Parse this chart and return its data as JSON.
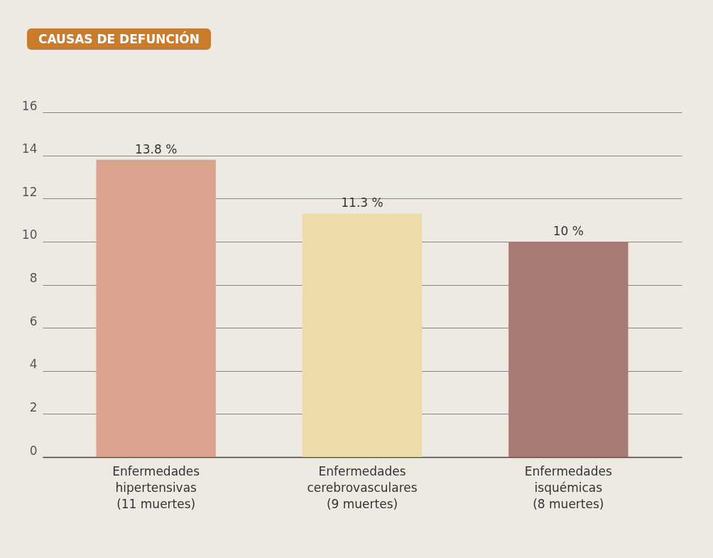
{
  "chart_data": {
    "type": "bar",
    "title": "CAUSAS DE DEFUNCIÓN",
    "categories": [
      "Enfermedades\nhipertensivas\n(11 muertes)",
      "Enfermedades\ncerebrovasculares\n(9 muertes)",
      "Enfermedades\nisquémicas\n(8 muertes)"
    ],
    "values": [
      13.8,
      11.3,
      10
    ],
    "colors": [
      "#d9a38e",
      "#ecdca9",
      "#a87a76"
    ],
    "value_labels": [
      "13.8 %",
      "11.3 %",
      "10 %"
    ],
    "ylim": [
      0,
      16
    ],
    "yticks": [
      0,
      2,
      4,
      6,
      8,
      10,
      12,
      14,
      16
    ],
    "grid": "y"
  }
}
